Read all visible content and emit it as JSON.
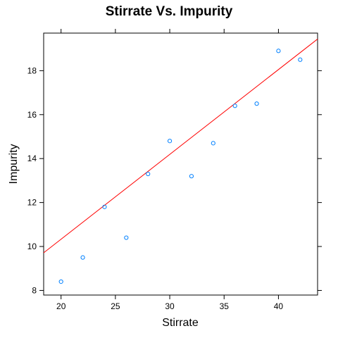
{
  "chart_data": {
    "type": "scatter",
    "title": "Stirrate Vs. Impurity",
    "xlabel": "Stirrate",
    "ylabel": "Impurity",
    "xlim": [
      18.4,
      43.6
    ],
    "ylim": [
      7.79,
      19.71
    ],
    "xticks": [
      20,
      25,
      30,
      35,
      40
    ],
    "yticks": [
      8,
      10,
      12,
      14,
      16,
      18
    ],
    "xtick_labels": [
      "20",
      "25",
      "30",
      "35",
      "40"
    ],
    "ytick_labels": [
      "8",
      "10",
      "12",
      "14",
      "16",
      "18"
    ],
    "grid": false,
    "series": [
      {
        "x": [
          20,
          22,
          24,
          26,
          28,
          30,
          32,
          34,
          36,
          38,
          40,
          42
        ],
        "y": [
          8.4,
          9.5,
          11.8,
          10.4,
          13.3,
          14.8,
          13.2,
          14.7,
          16.4,
          16.5,
          18.9,
          18.5
        ],
        "color": "#0080ff",
        "marker": "open-circle"
      }
    ],
    "regression_line": {
      "intercept": 2.61,
      "slope": 0.386,
      "color": "#ff0000"
    }
  }
}
